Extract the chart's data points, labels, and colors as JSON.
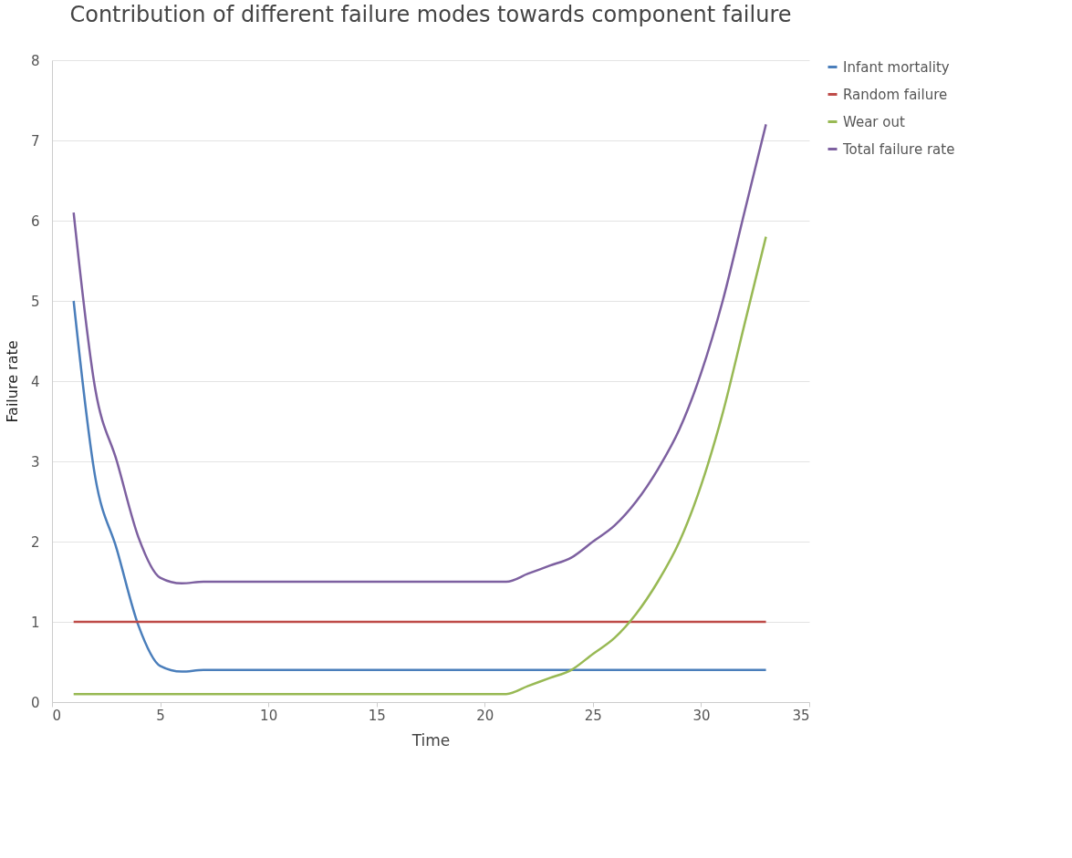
{
  "chart_data": {
    "type": "line",
    "title": "Contribution of different failure modes towards component failure",
    "xlabel": "Time",
    "ylabel": "Failure rate",
    "x": [
      1,
      2,
      3,
      4,
      5,
      6,
      7,
      8,
      9,
      10,
      11,
      12,
      13,
      14,
      15,
      16,
      17,
      18,
      19,
      20,
      21,
      22,
      23,
      24,
      25,
      26,
      27,
      28,
      29,
      30,
      31,
      32,
      33
    ],
    "series": [
      {
        "name": "Infant mortality",
        "color": "#4a7ebb",
        "values": [
          5.0,
          2.8,
          1.9,
          0.95,
          0.45,
          0.38,
          0.4,
          0.4,
          0.4,
          0.4,
          0.4,
          0.4,
          0.4,
          0.4,
          0.4,
          0.4,
          0.4,
          0.4,
          0.4,
          0.4,
          0.4,
          0.4,
          0.4,
          0.4,
          0.4,
          0.4,
          0.4,
          0.4,
          0.4,
          0.4,
          0.4,
          0.4,
          0.4
        ]
      },
      {
        "name": "Random failure",
        "color": "#be4b48",
        "values": [
          1,
          1,
          1,
          1,
          1,
          1,
          1,
          1,
          1,
          1,
          1,
          1,
          1,
          1,
          1,
          1,
          1,
          1,
          1,
          1,
          1,
          1,
          1,
          1,
          1,
          1,
          1,
          1,
          1,
          1,
          1,
          1,
          1
        ]
      },
      {
        "name": "Wear out",
        "color": "#98b954",
        "values": [
          0.1,
          0.1,
          0.1,
          0.1,
          0.1,
          0.1,
          0.1,
          0.1,
          0.1,
          0.1,
          0.1,
          0.1,
          0.1,
          0.1,
          0.1,
          0.1,
          0.1,
          0.1,
          0.1,
          0.1,
          0.1,
          0.2,
          0.3,
          0.4,
          0.6,
          0.8,
          1.1,
          1.5,
          2.0,
          2.7,
          3.6,
          4.7,
          5.8
        ]
      },
      {
        "name": "Total failure rate",
        "color": "#7d60a0",
        "values": [
          6.1,
          3.9,
          3.0,
          2.05,
          1.55,
          1.48,
          1.5,
          1.5,
          1.5,
          1.5,
          1.5,
          1.5,
          1.5,
          1.5,
          1.5,
          1.5,
          1.5,
          1.5,
          1.5,
          1.5,
          1.5,
          1.6,
          1.7,
          1.8,
          2.0,
          2.2,
          2.5,
          2.9,
          3.4,
          4.1,
          5.0,
          6.1,
          7.2
        ]
      }
    ],
    "xlim": [
      0,
      35
    ],
    "xticks": [
      0,
      5,
      10,
      15,
      20,
      25,
      30,
      35
    ],
    "ylim": [
      0,
      8
    ],
    "yticks": [
      0,
      1,
      2,
      3,
      4,
      5,
      6,
      7,
      8
    ],
    "grid": "y",
    "legend": "right",
    "marker": "none",
    "line_style": "solid"
  }
}
